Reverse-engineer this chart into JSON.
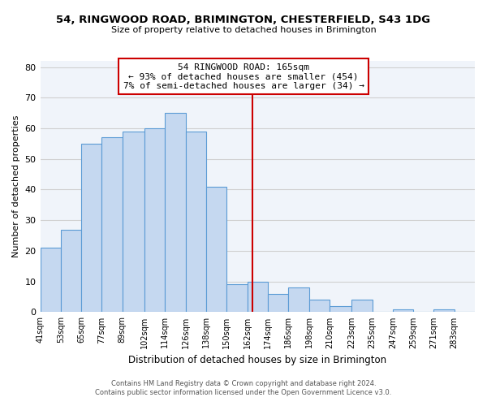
{
  "title1": "54, RINGWOOD ROAD, BRIMINGTON, CHESTERFIELD, S43 1DG",
  "title2": "Size of property relative to detached houses in Brimington",
  "xlabel": "Distribution of detached houses by size in Brimington",
  "ylabel": "Number of detached properties",
  "footer1": "Contains HM Land Registry data © Crown copyright and database right 2024.",
  "footer2": "Contains public sector information licensed under the Open Government Licence v3.0.",
  "bin_labels": [
    "41sqm",
    "53sqm",
    "65sqm",
    "77sqm",
    "89sqm",
    "102sqm",
    "114sqm",
    "126sqm",
    "138sqm",
    "150sqm",
    "162sqm",
    "174sqm",
    "186sqm",
    "198sqm",
    "210sqm",
    "223sqm",
    "235sqm",
    "247sqm",
    "259sqm",
    "271sqm",
    "283sqm"
  ],
  "bin_edges": [
    41,
    53,
    65,
    77,
    89,
    102,
    114,
    126,
    138,
    150,
    162,
    174,
    186,
    198,
    210,
    223,
    235,
    247,
    259,
    271,
    283,
    295
  ],
  "bar_heights": [
    21,
    27,
    55,
    57,
    59,
    60,
    65,
    59,
    41,
    9,
    10,
    6,
    8,
    4,
    2,
    4,
    0,
    1,
    0,
    1,
    0
  ],
  "bar_color": "#c5d8f0",
  "bar_edge_color": "#5b9bd5",
  "reference_line_x": 165,
  "reference_line_color": "#cc0000",
  "annotation_line1": "54 RINGWOOD ROAD: 165sqm",
  "annotation_line2": "← 93% of detached houses are smaller (454)",
  "annotation_line3": "7% of semi-detached houses are larger (34) →",
  "ylim": [
    0,
    82
  ],
  "yticks": [
    0,
    10,
    20,
    30,
    40,
    50,
    60,
    70,
    80
  ],
  "grid_color": "#d0d0d0",
  "background_color": "#f0f4fa"
}
